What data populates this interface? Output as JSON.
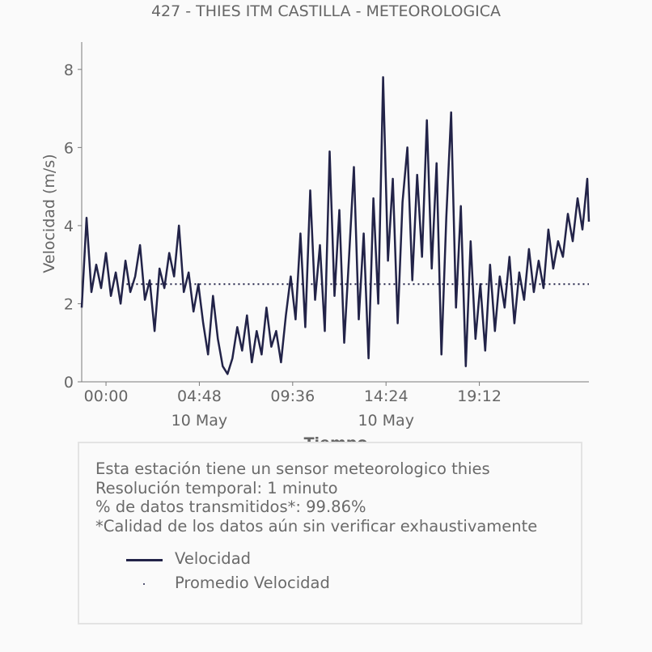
{
  "chart_data": {
    "type": "line",
    "title": "427 - THIES ITM CASTILLA - METEOROLOGICA",
    "xlabel": "Tiempo",
    "ylabel": "Velocidad (m/s)",
    "ylim": [
      0,
      8.7
    ],
    "xlim": [
      "2023-05-09T22:45",
      "2023-05-11T00:50"
    ],
    "yticks": [
      0,
      2,
      4,
      6,
      8
    ],
    "xticks": [
      {
        "t": "2023-05-10T00:00",
        "label": "00:00",
        "sublabel": ""
      },
      {
        "t": "2023-05-10T04:48",
        "label": "04:48",
        "sublabel": "10 May"
      },
      {
        "t": "2023-05-10T09:36",
        "label": "09:36",
        "sublabel": ""
      },
      {
        "t": "2023-05-10T14:24",
        "label": "14:24",
        "sublabel": "10 May"
      },
      {
        "t": "2023-05-10T19:12",
        "label": "19:12",
        "sublabel": ""
      }
    ],
    "series": [
      {
        "name": "Velocidad",
        "color": "#222348",
        "style": "solid",
        "points": [
          [
            "2023-05-09T22:45",
            1.9
          ],
          [
            "2023-05-09T23:00",
            4.2
          ],
          [
            "2023-05-09T23:15",
            2.3
          ],
          [
            "2023-05-09T23:30",
            3.0
          ],
          [
            "2023-05-09T23:45",
            2.4
          ],
          [
            "2023-05-10T00:00",
            3.3
          ],
          [
            "2023-05-10T00:15",
            2.2
          ],
          [
            "2023-05-10T00:30",
            2.8
          ],
          [
            "2023-05-10T00:45",
            2.0
          ],
          [
            "2023-05-10T01:00",
            3.1
          ],
          [
            "2023-05-10T01:15",
            2.3
          ],
          [
            "2023-05-10T01:30",
            2.7
          ],
          [
            "2023-05-10T01:45",
            3.5
          ],
          [
            "2023-05-10T02:00",
            2.1
          ],
          [
            "2023-05-10T02:15",
            2.6
          ],
          [
            "2023-05-10T02:30",
            1.3
          ],
          [
            "2023-05-10T02:45",
            2.9
          ],
          [
            "2023-05-10T03:00",
            2.4
          ],
          [
            "2023-05-10T03:15",
            3.3
          ],
          [
            "2023-05-10T03:30",
            2.7
          ],
          [
            "2023-05-10T03:45",
            4.0
          ],
          [
            "2023-05-10T04:00",
            2.3
          ],
          [
            "2023-05-10T04:15",
            2.8
          ],
          [
            "2023-05-10T04:30",
            1.8
          ],
          [
            "2023-05-10T04:45",
            2.5
          ],
          [
            "2023-05-10T05:00",
            1.5
          ],
          [
            "2023-05-10T05:15",
            0.7
          ],
          [
            "2023-05-10T05:30",
            2.2
          ],
          [
            "2023-05-10T05:45",
            1.1
          ],
          [
            "2023-05-10T06:00",
            0.4
          ],
          [
            "2023-05-10T06:15",
            0.2
          ],
          [
            "2023-05-10T06:30",
            0.6
          ],
          [
            "2023-05-10T06:45",
            1.4
          ],
          [
            "2023-05-10T07:00",
            0.8
          ],
          [
            "2023-05-10T07:15",
            1.7
          ],
          [
            "2023-05-10T07:30",
            0.5
          ],
          [
            "2023-05-10T07:45",
            1.3
          ],
          [
            "2023-05-10T08:00",
            0.7
          ],
          [
            "2023-05-10T08:15",
            1.9
          ],
          [
            "2023-05-10T08:30",
            0.9
          ],
          [
            "2023-05-10T08:45",
            1.3
          ],
          [
            "2023-05-10T09:00",
            0.5
          ],
          [
            "2023-05-10T09:15",
            1.7
          ],
          [
            "2023-05-10T09:30",
            2.7
          ],
          [
            "2023-05-10T09:45",
            1.6
          ],
          [
            "2023-05-10T10:00",
            3.8
          ],
          [
            "2023-05-10T10:15",
            1.4
          ],
          [
            "2023-05-10T10:30",
            4.9
          ],
          [
            "2023-05-10T10:45",
            2.1
          ],
          [
            "2023-05-10T11:00",
            3.5
          ],
          [
            "2023-05-10T11:15",
            1.3
          ],
          [
            "2023-05-10T11:30",
            5.9
          ],
          [
            "2023-05-10T11:45",
            2.2
          ],
          [
            "2023-05-10T12:00",
            4.4
          ],
          [
            "2023-05-10T12:15",
            1.0
          ],
          [
            "2023-05-10T12:30",
            3.2
          ],
          [
            "2023-05-10T12:45",
            5.5
          ],
          [
            "2023-05-10T13:00",
            1.6
          ],
          [
            "2023-05-10T13:15",
            3.8
          ],
          [
            "2023-05-10T13:30",
            0.6
          ],
          [
            "2023-05-10T13:45",
            4.7
          ],
          [
            "2023-05-10T14:00",
            2.0
          ],
          [
            "2023-05-10T14:15",
            7.8
          ],
          [
            "2023-05-10T14:30",
            3.1
          ],
          [
            "2023-05-10T14:45",
            5.2
          ],
          [
            "2023-05-10T15:00",
            1.5
          ],
          [
            "2023-05-10T15:15",
            4.6
          ],
          [
            "2023-05-10T15:30",
            6.0
          ],
          [
            "2023-05-10T15:45",
            2.6
          ],
          [
            "2023-05-10T16:00",
            5.3
          ],
          [
            "2023-05-10T16:15",
            3.2
          ],
          [
            "2023-05-10T16:30",
            6.7
          ],
          [
            "2023-05-10T16:45",
            2.9
          ],
          [
            "2023-05-10T17:00",
            5.6
          ],
          [
            "2023-05-10T17:15",
            0.7
          ],
          [
            "2023-05-10T17:30",
            4.2
          ],
          [
            "2023-05-10T17:45",
            6.9
          ],
          [
            "2023-05-10T18:00",
            1.9
          ],
          [
            "2023-05-10T18:15",
            4.5
          ],
          [
            "2023-05-10T18:30",
            0.4
          ],
          [
            "2023-05-10T18:45",
            3.6
          ],
          [
            "2023-05-10T19:00",
            1.1
          ],
          [
            "2023-05-10T19:15",
            2.5
          ],
          [
            "2023-05-10T19:30",
            0.8
          ],
          [
            "2023-05-10T19:45",
            3.0
          ],
          [
            "2023-05-10T20:00",
            1.3
          ],
          [
            "2023-05-10T20:15",
            2.7
          ],
          [
            "2023-05-10T20:30",
            1.9
          ],
          [
            "2023-05-10T20:45",
            3.2
          ],
          [
            "2023-05-10T21:00",
            1.5
          ],
          [
            "2023-05-10T21:15",
            2.8
          ],
          [
            "2023-05-10T21:30",
            2.1
          ],
          [
            "2023-05-10T21:45",
            3.4
          ],
          [
            "2023-05-10T22:00",
            2.3
          ],
          [
            "2023-05-10T22:15",
            3.1
          ],
          [
            "2023-05-10T22:30",
            2.4
          ],
          [
            "2023-05-10T22:45",
            3.9
          ],
          [
            "2023-05-10T23:00",
            2.9
          ],
          [
            "2023-05-10T23:15",
            3.6
          ],
          [
            "2023-05-10T23:30",
            3.2
          ],
          [
            "2023-05-10T23:45",
            4.3
          ],
          [
            "2023-05-11T00:00",
            3.6
          ],
          [
            "2023-05-11T00:15",
            4.7
          ],
          [
            "2023-05-11T00:30",
            3.9
          ],
          [
            "2023-05-11T00:45",
            5.2
          ],
          [
            "2023-05-11T00:50",
            4.1
          ]
        ]
      },
      {
        "name": "Promedio Velocidad",
        "color": "#222348",
        "style": "dotted",
        "constant": 2.5
      }
    ],
    "legend_position": "bottom"
  },
  "info": {
    "lines": [
      "Esta estación tiene un sensor meteorologico thies",
      "Resolución temporal: 1 minuto",
      "% de datos transmitidos*: 99.86%",
      "*Calidad de los datos aún sin verificar exhaustivamente"
    ]
  }
}
